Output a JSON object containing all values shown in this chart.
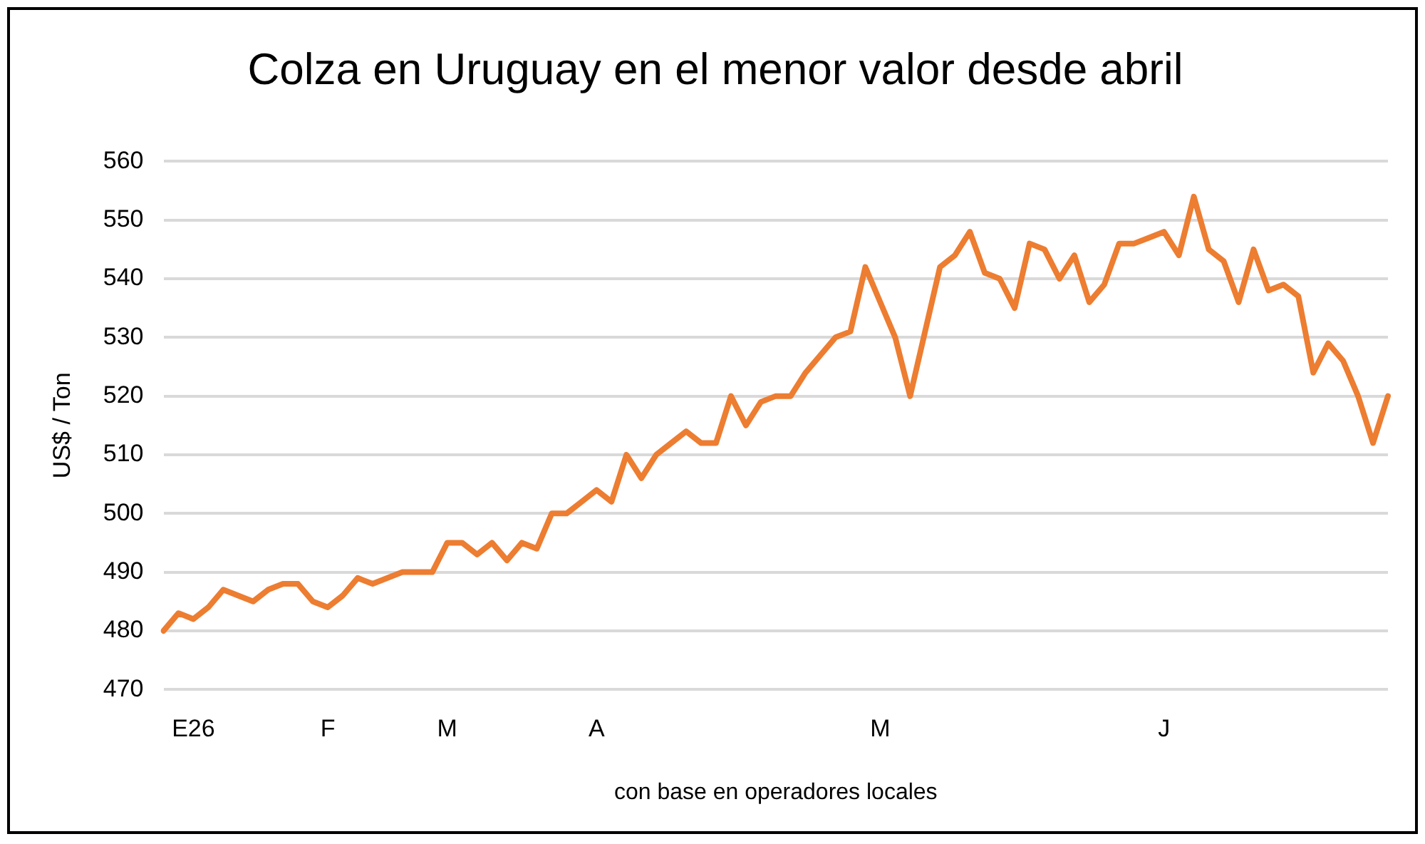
{
  "chart_data": {
    "type": "line",
    "title": "Colza en Uruguay en el menor valor desde abril",
    "ylabel": "US$ / Ton",
    "categories": [
      null,
      null,
      "E26",
      null,
      null,
      null,
      null,
      null,
      null,
      null,
      null,
      "F",
      null,
      null,
      null,
      null,
      null,
      null,
      null,
      "M",
      null,
      null,
      null,
      null,
      null,
      null,
      null,
      null,
      null,
      "A",
      null,
      null,
      null,
      null,
      null,
      null,
      null,
      null,
      null,
      null,
      null,
      null,
      null,
      null,
      null,
      null,
      null,
      null,
      "M",
      null,
      null,
      null,
      null,
      null,
      null,
      null,
      null,
      null,
      null,
      null,
      null,
      null,
      null,
      null,
      null,
      null,
      null,
      "J",
      null,
      null,
      null,
      null,
      null,
      null,
      null,
      null,
      null,
      null,
      null,
      null,
      null,
      null,
      null
    ],
    "series": [
      {
        "color": "#ed7d31",
        "values": [
          480,
          483,
          482,
          484,
          487,
          486,
          485,
          487,
          488,
          488,
          485,
          484,
          486,
          489,
          488,
          489,
          490,
          490,
          490,
          495,
          495,
          493,
          495,
          492,
          495,
          494,
          500,
          500,
          502,
          504,
          502,
          510,
          506,
          510,
          512,
          514,
          512,
          512,
          520,
          515,
          519,
          520,
          520,
          524,
          527,
          530,
          531,
          542,
          536,
          530,
          520,
          531,
          542,
          544,
          548,
          541,
          540,
          535,
          546,
          545,
          540,
          544,
          536,
          539,
          546,
          546,
          547,
          548,
          544,
          554,
          545,
          543,
          536,
          545,
          538,
          539,
          537,
          524,
          529,
          526,
          520,
          512,
          520
        ]
      }
    ],
    "ylim": [
      470,
      560
    ],
    "yticks": [
      470,
      480,
      490,
      500,
      510,
      520,
      530,
      540,
      550,
      560
    ],
    "grid": "y",
    "legend": false,
    "marker": "none",
    "line_style": "solid",
    "annotations": [
      "con base en operadores locales"
    ]
  }
}
